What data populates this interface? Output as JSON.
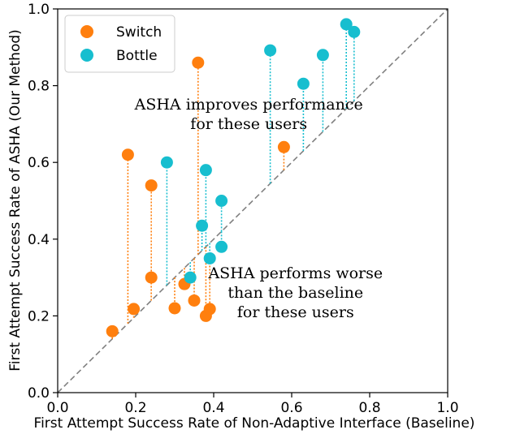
{
  "chart_data": {
    "type": "scatter",
    "xlabel": "First Attempt Success Rate of Non-Adaptive Interface (Baseline)",
    "ylabel": "First Attempt Success Rate of ASHA (Our Method)",
    "xlim": [
      0.0,
      1.0
    ],
    "ylim": [
      0.0,
      1.0
    ],
    "xticks": [
      "0.0",
      "0.2",
      "0.4",
      "0.6",
      "0.8",
      "1.0"
    ],
    "yticks": [
      "0.0",
      "0.2",
      "0.4",
      "0.6",
      "0.8",
      "1.0"
    ],
    "xtick_values": [
      0.0,
      0.2,
      0.4,
      0.6,
      0.8,
      1.0
    ],
    "ytick_values": [
      0.0,
      0.2,
      0.4,
      0.6,
      0.8,
      1.0
    ],
    "grid": false,
    "diagonal_reference": true,
    "legend_placement": "top-left",
    "series": [
      {
        "name": "Switch",
        "color": "#ff7f0e",
        "points": [
          {
            "x": 0.14,
            "y": 0.16
          },
          {
            "x": 0.18,
            "y": 0.62
          },
          {
            "x": 0.195,
            "y": 0.218
          },
          {
            "x": 0.24,
            "y": 0.54
          },
          {
            "x": 0.24,
            "y": 0.3
          },
          {
            "x": 0.3,
            "y": 0.22
          },
          {
            "x": 0.325,
            "y": 0.283
          },
          {
            "x": 0.35,
            "y": 0.24
          },
          {
            "x": 0.36,
            "y": 0.86
          },
          {
            "x": 0.38,
            "y": 0.2
          },
          {
            "x": 0.39,
            "y": 0.218
          },
          {
            "x": 0.58,
            "y": 0.64
          }
        ]
      },
      {
        "name": "Bottle",
        "color": "#17becf",
        "points": [
          {
            "x": 0.28,
            "y": 0.6
          },
          {
            "x": 0.34,
            "y": 0.3
          },
          {
            "x": 0.37,
            "y": 0.435
          },
          {
            "x": 0.38,
            "y": 0.58
          },
          {
            "x": 0.39,
            "y": 0.35
          },
          {
            "x": 0.42,
            "y": 0.5
          },
          {
            "x": 0.42,
            "y": 0.38
          },
          {
            "x": 0.545,
            "y": 0.892
          },
          {
            "x": 0.63,
            "y": 0.805
          },
          {
            "x": 0.68,
            "y": 0.88
          },
          {
            "x": 0.74,
            "y": 0.96
          },
          {
            "x": 0.76,
            "y": 0.94
          }
        ]
      }
    ],
    "annotations": [
      {
        "lines": [
          "ASHA improves performance",
          "for these users"
        ],
        "x": 0.49,
        "y": 0.725
      },
      {
        "lines": [
          "ASHA performs worse",
          "than the baseline",
          "for these users"
        ],
        "x": 0.61,
        "y": 0.26
      }
    ]
  }
}
